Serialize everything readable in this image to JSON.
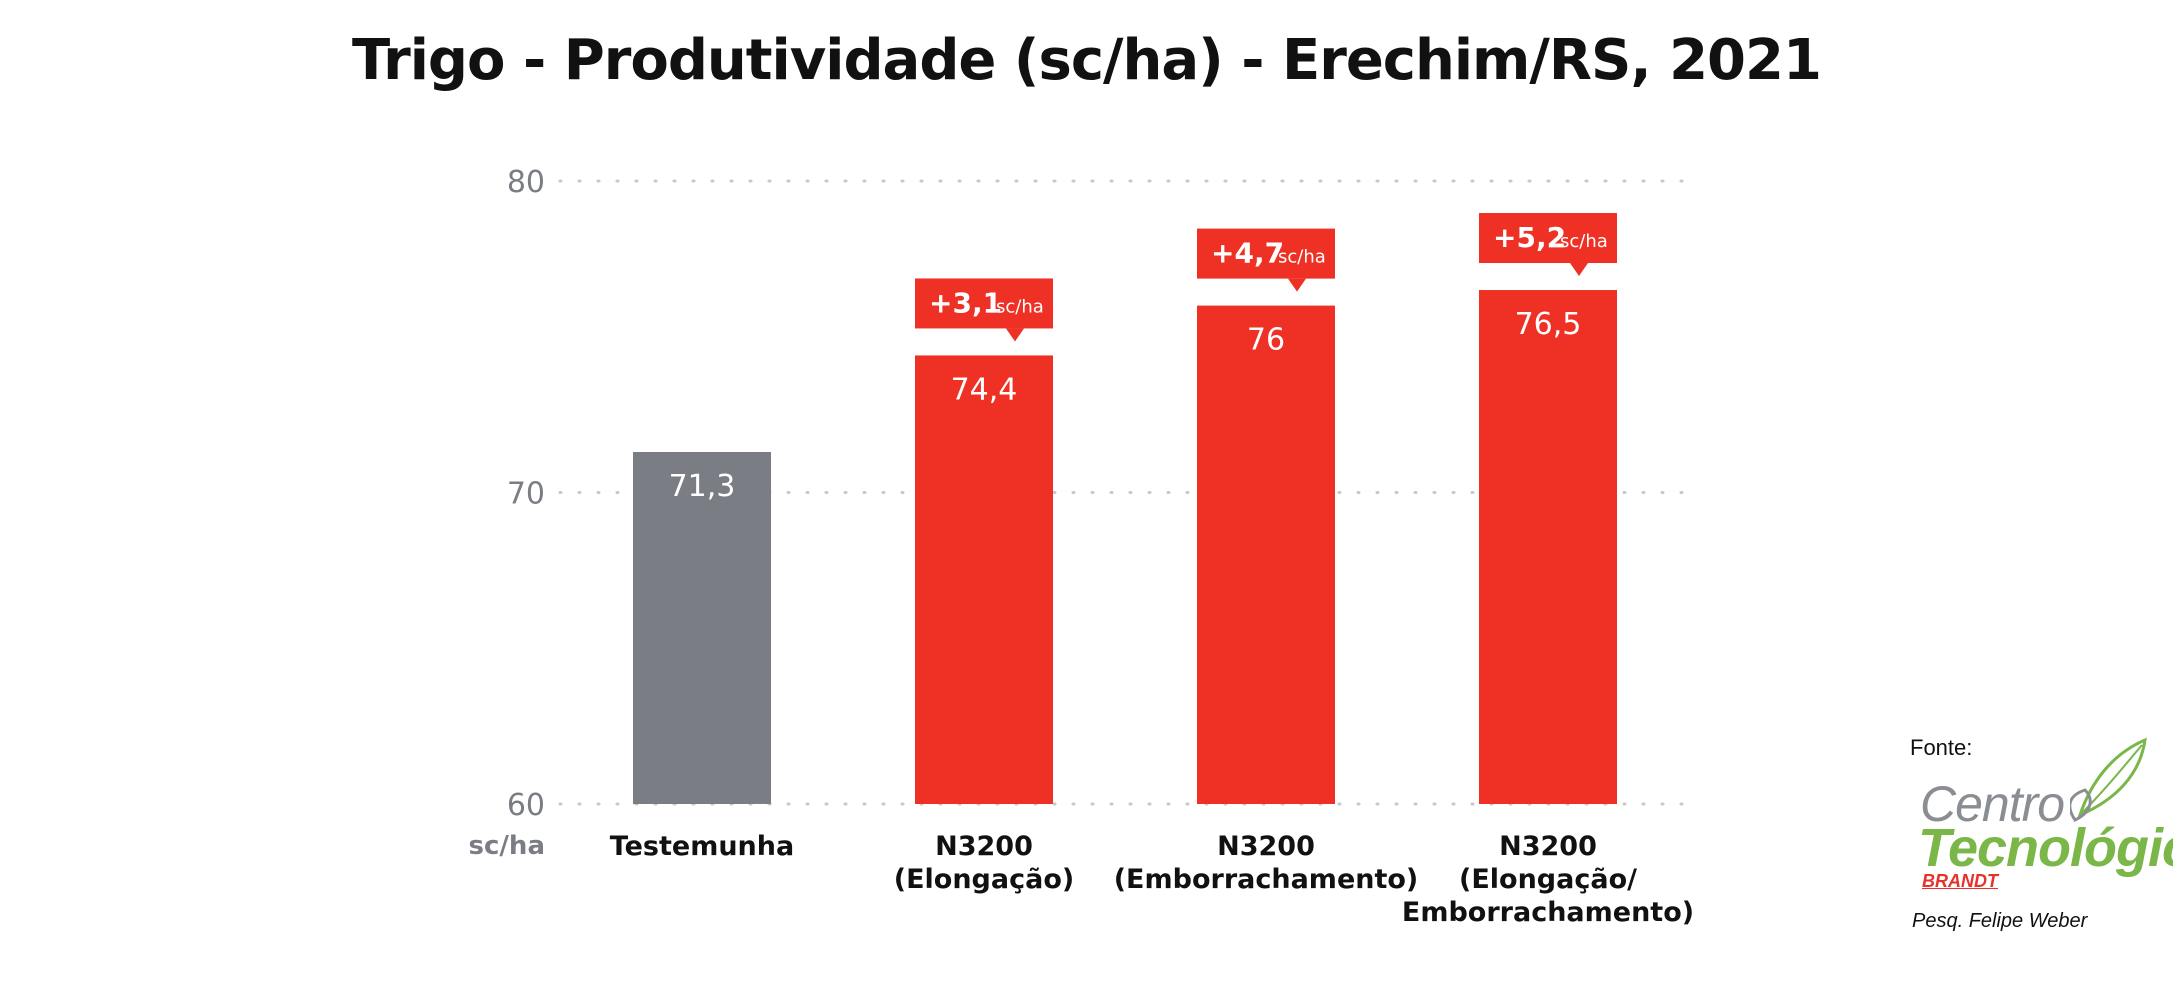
{
  "chart_data": {
    "type": "bar",
    "title": "Trigo - Produtividade (sc/ha) - Erechim/RS, 2021",
    "ylabel": "sc/ha",
    "ylim": [
      60,
      80
    ],
    "yticks": [
      "80",
      "70",
      "60"
    ],
    "yticks_values": [
      80,
      70,
      60
    ],
    "grid": true,
    "categories": [
      [
        "Testemunha"
      ],
      [
        "N3200",
        "(Elongação)"
      ],
      [
        "N3200",
        "(Emborrachamento)"
      ],
      [
        "N3200",
        "(Elongação/",
        "Emborrachamento)"
      ]
    ],
    "values": [
      71.3,
      74.4,
      76,
      76.5
    ],
    "value_labels": [
      "71,3",
      "74,4",
      "76",
      "76,5"
    ],
    "bar_colors": [
      "#7a7d84",
      "#ee3124",
      "#ee3124",
      "#ee3124"
    ],
    "gain_labels": [
      null,
      "+3,1",
      "+4,7",
      "+5,2"
    ],
    "gain_unit": "sc/ha"
  },
  "colors": {
    "control": "#7a7d84",
    "treatment": "#ee3124",
    "axis_text": "#7a7d84",
    "grid": "#c8c8c8"
  },
  "source": {
    "label": "Fonte:",
    "logo_line1": "Centro",
    "logo_line2": "Tecnológico",
    "logo_brand": "BRANDT",
    "author": "Pesq. Felipe Weber"
  }
}
